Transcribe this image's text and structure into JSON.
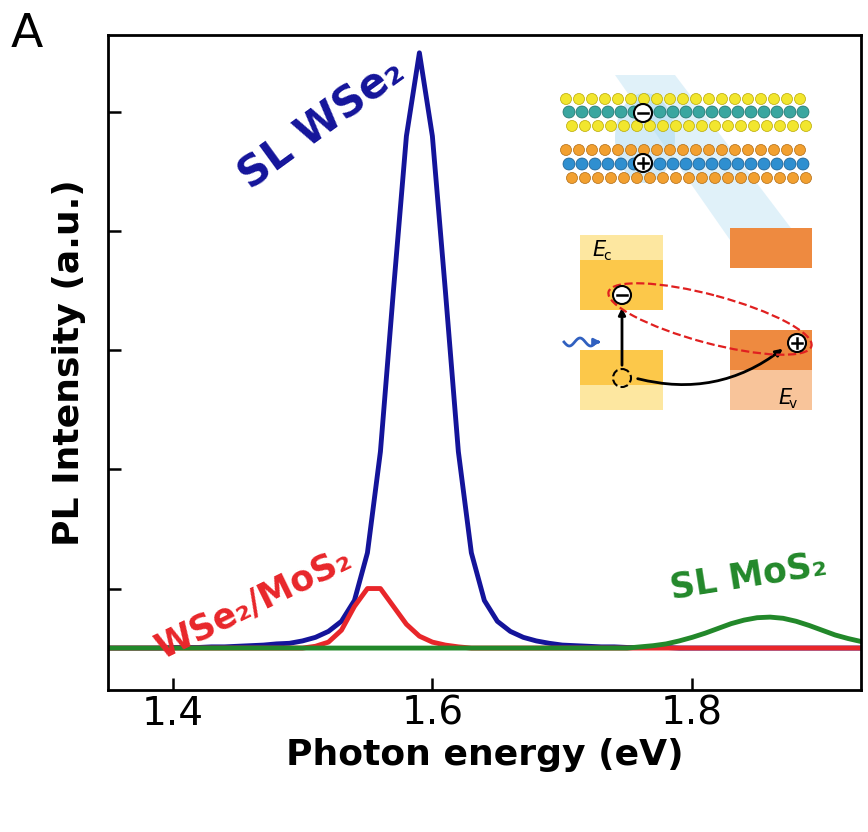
{
  "chart_data": {
    "type": "line",
    "panel_label": "A",
    "x_label": "Photon energy (eV)",
    "y_label": "PL Intensity (a.u.)",
    "x": [
      1.35,
      1.36,
      1.37,
      1.38,
      1.39,
      1.4,
      1.41,
      1.42,
      1.43,
      1.44,
      1.45,
      1.46,
      1.47,
      1.48,
      1.49,
      1.5,
      1.51,
      1.52,
      1.53,
      1.54,
      1.55,
      1.56,
      1.57,
      1.58,
      1.59,
      1.6,
      1.61,
      1.62,
      1.63,
      1.64,
      1.65,
      1.66,
      1.67,
      1.68,
      1.69,
      1.7,
      1.71,
      1.72,
      1.73,
      1.74,
      1.75,
      1.76,
      1.77,
      1.78,
      1.79,
      1.8,
      1.81,
      1.82,
      1.83,
      1.84,
      1.85,
      1.86,
      1.87,
      1.88,
      1.89,
      1.9,
      1.91,
      1.92,
      1.93
    ],
    "series": [
      {
        "name": "SL WSe₂",
        "color": "#14149a",
        "values": [
          0,
          0,
          0,
          0,
          0,
          0.001,
          0.001,
          0.001,
          0.002,
          0.002,
          0.003,
          0.004,
          0.005,
          0.007,
          0.008,
          0.012,
          0.018,
          0.028,
          0.045,
          0.08,
          0.16,
          0.33,
          0.6,
          0.86,
          1.0,
          0.86,
          0.6,
          0.33,
          0.16,
          0.08,
          0.045,
          0.028,
          0.018,
          0.012,
          0.008,
          0.005,
          0.004,
          0.003,
          0.002,
          0.002,
          0.001,
          0.001,
          0.001,
          0.001,
          0,
          0,
          0,
          0,
          0,
          0,
          0,
          0,
          0,
          0,
          0,
          0,
          0,
          0,
          0
        ]
      },
      {
        "name": "WSe₂/MoS₂",
        "color": "#e8262a",
        "values": [
          0,
          0,
          0,
          0,
          0,
          0,
          0,
          0,
          0,
          0,
          0,
          0,
          0,
          0,
          0,
          0,
          0.003,
          0.01,
          0.03,
          0.07,
          0.1,
          0.1,
          0.07,
          0.04,
          0.02,
          0.01,
          0.005,
          0.002,
          0,
          0,
          0,
          0,
          0,
          0,
          0,
          0,
          0,
          0,
          0,
          0,
          0,
          0,
          0,
          0,
          0,
          0,
          0,
          0,
          0,
          0,
          0,
          0,
          0,
          0,
          0,
          0,
          0,
          0,
          0
        ]
      },
      {
        "name": "SL MoS₂",
        "color": "#22882a",
        "values": [
          0,
          0,
          0,
          0,
          0,
          0,
          0,
          0,
          0,
          0,
          0,
          0,
          0,
          0,
          0,
          0,
          0,
          0,
          0,
          0,
          0,
          0,
          0,
          0,
          0,
          0,
          0,
          0,
          0,
          0,
          0,
          0,
          0,
          0,
          0,
          0,
          0,
          0,
          0,
          0,
          0,
          0.002,
          0.004,
          0.007,
          0.012,
          0.018,
          0.025,
          0.033,
          0.041,
          0.047,
          0.051,
          0.052,
          0.05,
          0.045,
          0.038,
          0.03,
          0.022,
          0.016,
          0.011
        ]
      }
    ],
    "xlim": [
      1.35,
      1.93
    ],
    "xticks": [
      1.4,
      1.6,
      1.8
    ],
    "ylim": [
      -0.07,
      1.03
    ],
    "yticks": [
      0.1,
      0.3,
      0.5,
      0.7,
      0.9
    ],
    "tick_labels": "x",
    "grid": false,
    "inset": {
      "band_labels": [
        {
          "text": "E",
          "subscript": "c"
        },
        {
          "text": "E",
          "subscript": "v"
        }
      ]
    }
  }
}
